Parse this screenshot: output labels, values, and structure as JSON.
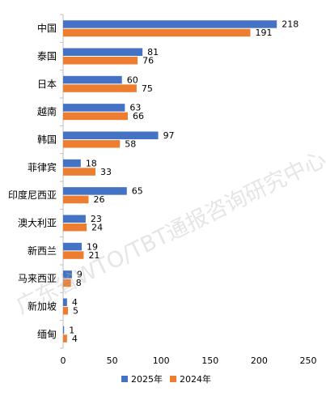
{
  "watermark": "广东省WTO/TBT通报咨询研究中心",
  "colors": {
    "series_2025": "#4472C4",
    "series_2024": "#ED7D31",
    "axis": "#bfbfbf",
    "text": "#000000"
  },
  "chart_data": {
    "type": "bar",
    "orientation": "horizontal",
    "title": "",
    "xlabel": "",
    "ylabel": "",
    "categories": [
      "中国",
      "泰国",
      "日本",
      "越南",
      "韩国",
      "菲律宾",
      "印度尼西亚",
      "澳大利亚",
      "新西兰",
      "马来西亚",
      "新加坡",
      "缅甸"
    ],
    "series": [
      {
        "name": "2025年",
        "color": "#4472C4",
        "values": [
          218,
          81,
          60,
          63,
          97,
          18,
          65,
          23,
          19,
          9,
          4,
          1
        ]
      },
      {
        "name": "2024年",
        "color": "#ED7D31",
        "values": [
          191,
          76,
          75,
          66,
          58,
          33,
          26,
          24,
          21,
          8,
          5,
          4
        ]
      }
    ],
    "xlim": [
      0,
      250
    ],
    "xticks": [
      0,
      50,
      100,
      150,
      200,
      250
    ],
    "grid": false,
    "legend_position": "bottom",
    "data_labels": true
  }
}
